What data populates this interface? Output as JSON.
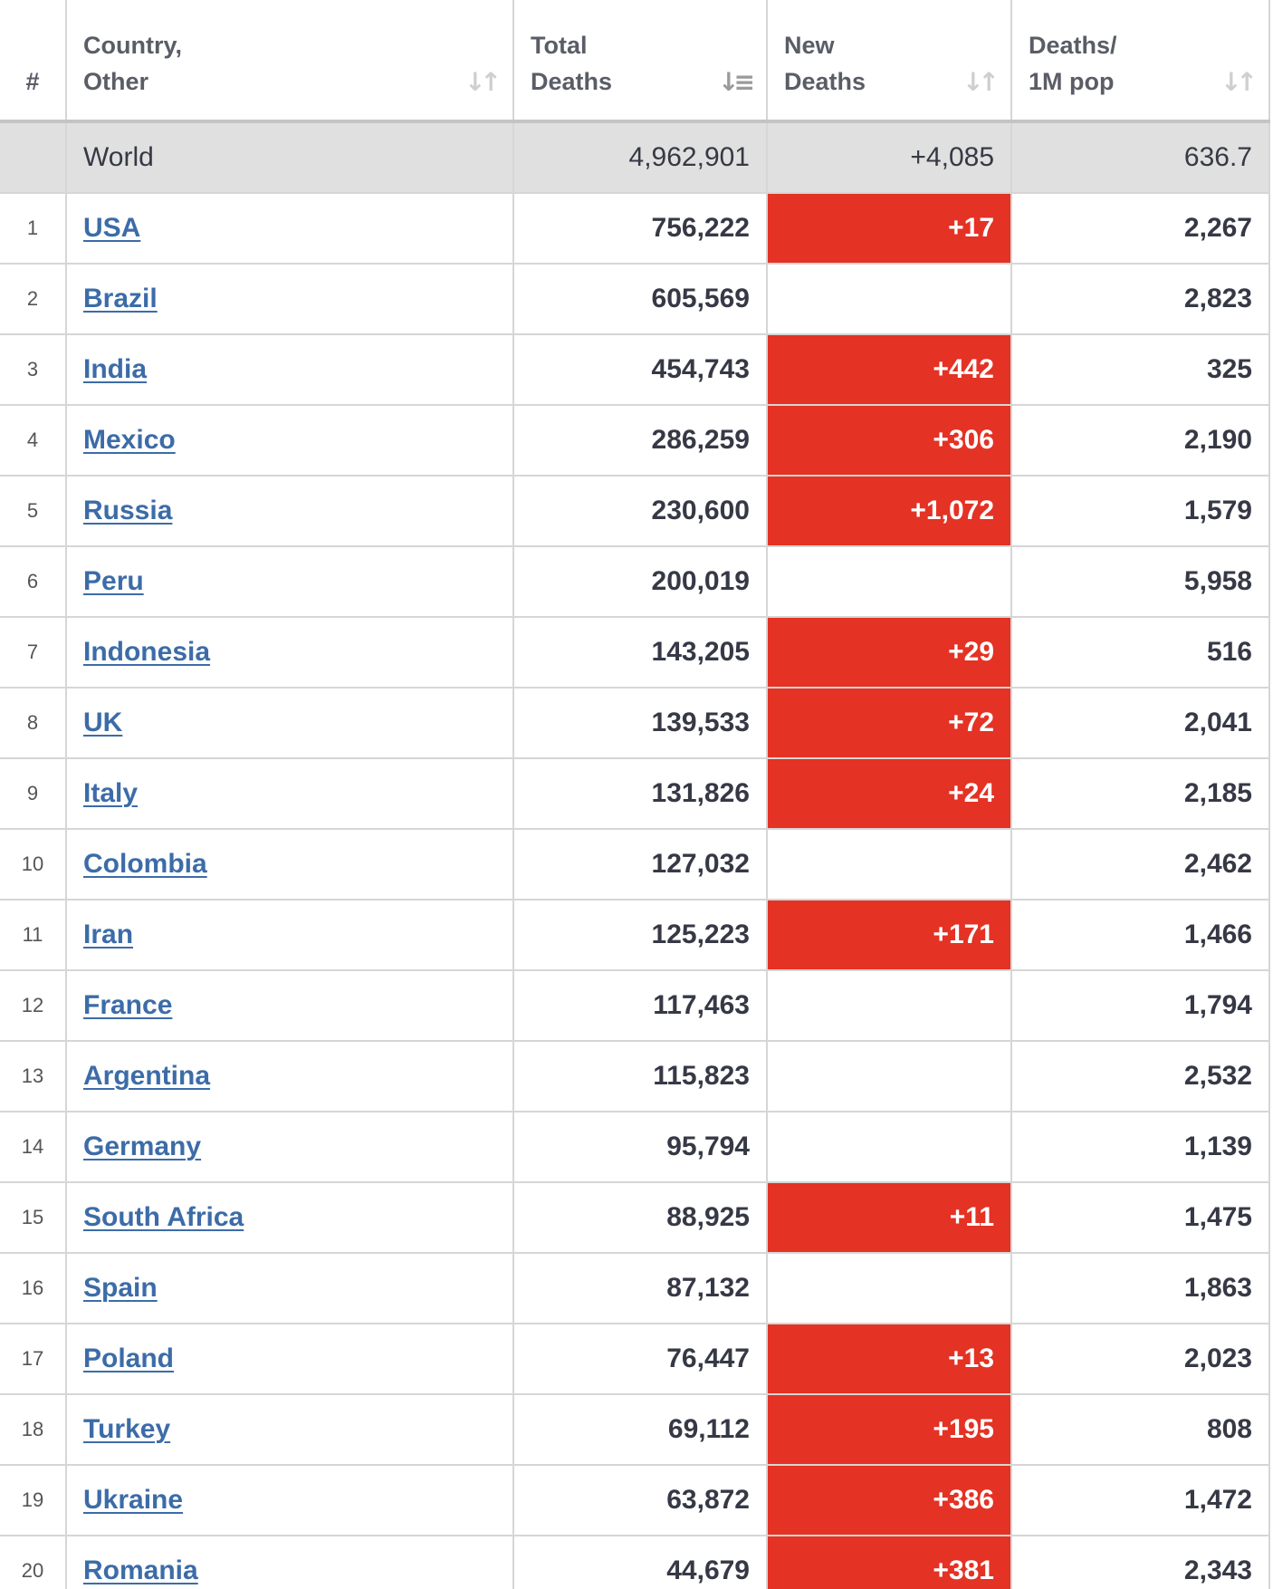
{
  "colors": {
    "new_deaths_highlight": "#e43224",
    "link": "#3c6ca8",
    "world_row_bg": "#e0e0e0"
  },
  "header": {
    "rank": "#",
    "country": [
      "Country,",
      "Other"
    ],
    "total_deaths": [
      "Total",
      "Deaths"
    ],
    "new_deaths": [
      "New",
      "Deaths"
    ],
    "deaths_per_1m": [
      "Deaths/",
      "1M pop"
    ],
    "sort_icon": "sort-arrows-icon",
    "active_sort_icon": "sort-descending-icon"
  },
  "world": {
    "country": "World",
    "total_deaths": "4,962,901",
    "new_deaths": "+4,085",
    "deaths_per_1m": "636.7"
  },
  "rows": [
    {
      "rank": "1",
      "country": "USA",
      "total_deaths": "756,222",
      "new_deaths": "+17",
      "deaths_per_1m": "2,267"
    },
    {
      "rank": "2",
      "country": "Brazil",
      "total_deaths": "605,569",
      "new_deaths": "",
      "deaths_per_1m": "2,823"
    },
    {
      "rank": "3",
      "country": "India",
      "total_deaths": "454,743",
      "new_deaths": "+442",
      "deaths_per_1m": "325"
    },
    {
      "rank": "4",
      "country": "Mexico",
      "total_deaths": "286,259",
      "new_deaths": "+306",
      "deaths_per_1m": "2,190"
    },
    {
      "rank": "5",
      "country": "Russia",
      "total_deaths": "230,600",
      "new_deaths": "+1,072",
      "deaths_per_1m": "1,579"
    },
    {
      "rank": "6",
      "country": "Peru",
      "total_deaths": "200,019",
      "new_deaths": "",
      "deaths_per_1m": "5,958"
    },
    {
      "rank": "7",
      "country": "Indonesia",
      "total_deaths": "143,205",
      "new_deaths": "+29",
      "deaths_per_1m": "516"
    },
    {
      "rank": "8",
      "country": "UK",
      "total_deaths": "139,533",
      "new_deaths": "+72",
      "deaths_per_1m": "2,041"
    },
    {
      "rank": "9",
      "country": "Italy",
      "total_deaths": "131,826",
      "new_deaths": "+24",
      "deaths_per_1m": "2,185"
    },
    {
      "rank": "10",
      "country": "Colombia",
      "total_deaths": "127,032",
      "new_deaths": "",
      "deaths_per_1m": "2,462"
    },
    {
      "rank": "11",
      "country": "Iran",
      "total_deaths": "125,223",
      "new_deaths": "+171",
      "deaths_per_1m": "1,466"
    },
    {
      "rank": "12",
      "country": "France",
      "total_deaths": "117,463",
      "new_deaths": "",
      "deaths_per_1m": "1,794"
    },
    {
      "rank": "13",
      "country": "Argentina",
      "total_deaths": "115,823",
      "new_deaths": "",
      "deaths_per_1m": "2,532"
    },
    {
      "rank": "14",
      "country": "Germany",
      "total_deaths": "95,794",
      "new_deaths": "",
      "deaths_per_1m": "1,139"
    },
    {
      "rank": "15",
      "country": "South Africa",
      "total_deaths": "88,925",
      "new_deaths": "+11",
      "deaths_per_1m": "1,475"
    },
    {
      "rank": "16",
      "country": "Spain",
      "total_deaths": "87,132",
      "new_deaths": "",
      "deaths_per_1m": "1,863"
    },
    {
      "rank": "17",
      "country": "Poland",
      "total_deaths": "76,447",
      "new_deaths": "+13",
      "deaths_per_1m": "2,023"
    },
    {
      "rank": "18",
      "country": "Turkey",
      "total_deaths": "69,112",
      "new_deaths": "+195",
      "deaths_per_1m": "808"
    },
    {
      "rank": "19",
      "country": "Ukraine",
      "total_deaths": "63,872",
      "new_deaths": "+386",
      "deaths_per_1m": "1,472"
    },
    {
      "rank": "20",
      "country": "Romania",
      "total_deaths": "44,679",
      "new_deaths": "+381",
      "deaths_per_1m": "2,343"
    }
  ]
}
